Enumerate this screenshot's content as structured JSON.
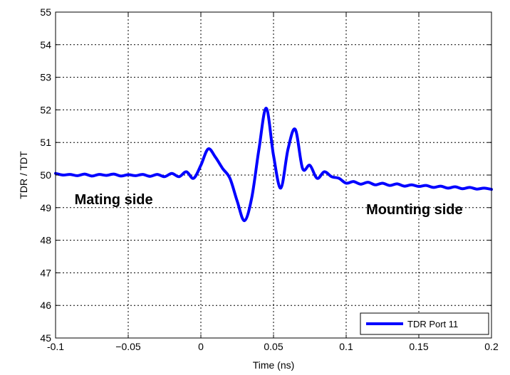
{
  "chart_data": {
    "type": "line",
    "xlabel": "Time (ns)",
    "ylabel": "TDR / TDT",
    "xlim": [
      -0.1,
      0.2
    ],
    "ylim": [
      45,
      55
    ],
    "xticks": [
      -0.1,
      -0.05,
      0,
      0.05,
      0.1,
      0.15,
      0.2
    ],
    "xtick_labels": [
      "-0.1",
      "−0.05",
      "0",
      "0.05",
      "0.1",
      "0.15",
      "0.2"
    ],
    "yticks": [
      45,
      46,
      47,
      48,
      49,
      50,
      51,
      52,
      53,
      54,
      55
    ],
    "ytick_labels": [
      "45",
      "46",
      "47",
      "48",
      "49",
      "50",
      "51",
      "52",
      "53",
      "54",
      "55"
    ],
    "grid": true,
    "grid_style": "dotted",
    "legend_position": "bottom-right",
    "annotations": [
      {
        "text": "Mating side",
        "x": -0.06,
        "y": 49.1
      },
      {
        "text": "Mounting side",
        "x": 0.147,
        "y": 48.8
      }
    ],
    "series": [
      {
        "name": "TDR Port 11",
        "color": "#0000ff",
        "x": [
          -0.1,
          -0.095,
          -0.09,
          -0.085,
          -0.08,
          -0.075,
          -0.07,
          -0.065,
          -0.06,
          -0.055,
          -0.05,
          -0.045,
          -0.04,
          -0.035,
          -0.03,
          -0.025,
          -0.02,
          -0.015,
          -0.01,
          -0.005,
          0.0,
          0.005,
          0.01,
          0.015,
          0.02,
          0.025,
          0.03,
          0.035,
          0.04,
          0.045,
          0.05,
          0.055,
          0.06,
          0.065,
          0.07,
          0.075,
          0.08,
          0.085,
          0.09,
          0.095,
          0.1,
          0.105,
          0.11,
          0.115,
          0.12,
          0.125,
          0.13,
          0.135,
          0.14,
          0.145,
          0.15,
          0.155,
          0.16,
          0.165,
          0.17,
          0.175,
          0.18,
          0.185,
          0.19,
          0.195,
          0.2
        ],
        "values": [
          50.05,
          50.0,
          50.02,
          49.98,
          50.03,
          49.97,
          50.02,
          49.99,
          50.03,
          49.97,
          50.01,
          49.98,
          50.02,
          49.96,
          50.02,
          49.95,
          50.05,
          49.95,
          50.1,
          49.9,
          50.3,
          50.8,
          50.55,
          50.2,
          49.9,
          49.2,
          48.6,
          49.3,
          50.8,
          52.05,
          50.6,
          49.6,
          50.8,
          51.4,
          50.2,
          50.3,
          49.9,
          50.1,
          49.95,
          49.9,
          49.75,
          49.8,
          49.72,
          49.78,
          49.7,
          49.75,
          49.68,
          49.73,
          49.66,
          49.7,
          49.65,
          49.68,
          49.62,
          49.66,
          49.6,
          49.64,
          49.58,
          49.62,
          49.57,
          49.6,
          49.56
        ]
      }
    ]
  }
}
